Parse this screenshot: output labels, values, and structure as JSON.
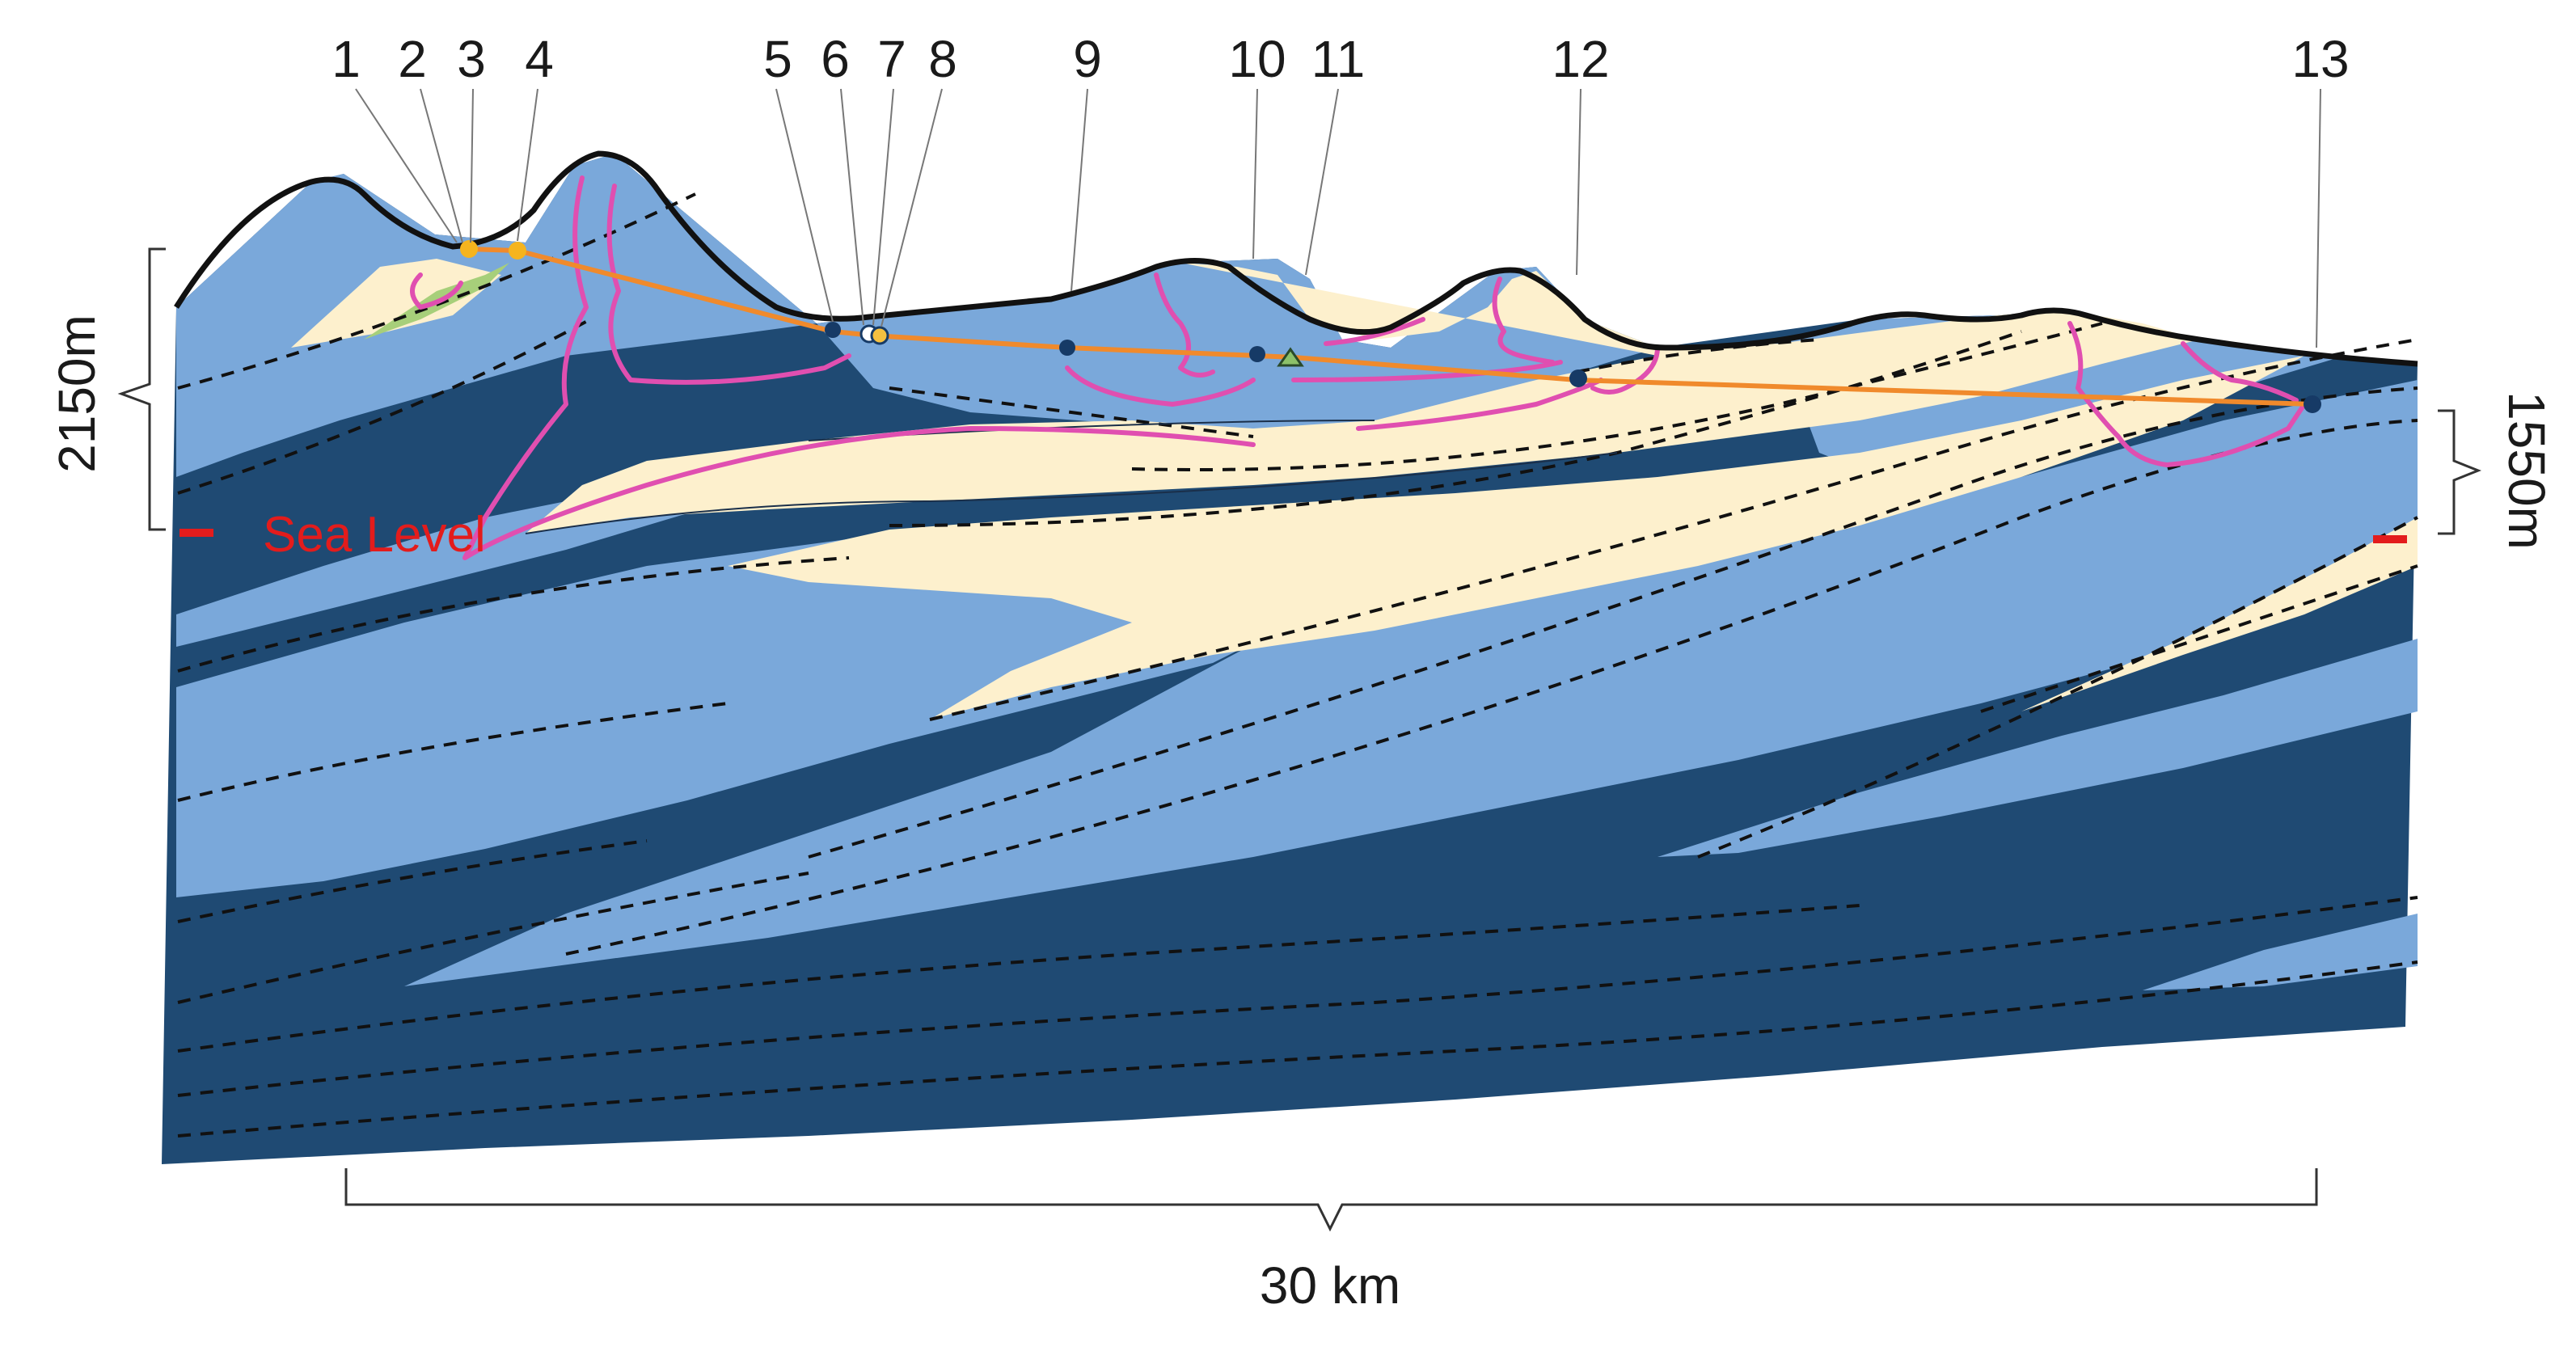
{
  "site_labels": [
    "1",
    "2",
    "3",
    "4",
    "5",
    "6",
    "7",
    "8",
    "9",
    "10",
    "11",
    "12",
    "13"
  ],
  "left_height": "2150m",
  "right_height": "1550m",
  "sea_level_label": "Sea Level",
  "distance_label": "30 km",
  "colors": {
    "dark_blue": "#1f4a73",
    "mid_blue": "#7aa8da",
    "cream": "#fdf0cd",
    "green": "#a7cf7a",
    "orange": "#f08a2c",
    "magenta": "#e04fb0",
    "sea_level_red": "#e31c1c",
    "outline": "#111111"
  }
}
